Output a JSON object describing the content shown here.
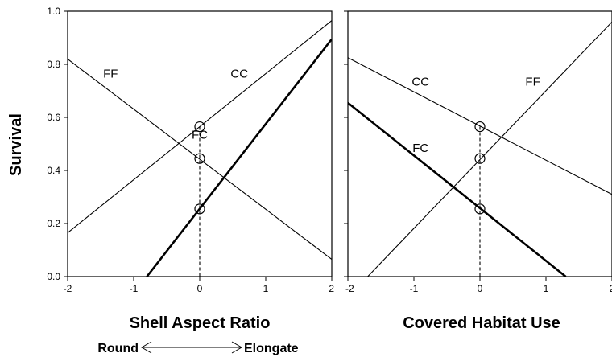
{
  "ylabel": "Survival",
  "direction": {
    "left": "Round",
    "right": "Elongate"
  },
  "chart_data": [
    {
      "type": "line",
      "xlabel": "Shell Aspect Ratio",
      "ylabel": "Survival",
      "xlim": [
        -2,
        2
      ],
      "ylim": [
        0.0,
        1.0
      ],
      "xticks": [
        "-2",
        "-1",
        "0",
        "1",
        "2"
      ],
      "yticks": [
        "0.0",
        "0.2",
        "0.4",
        "0.6",
        "0.8",
        "1.0"
      ],
      "grid": false,
      "series": [
        {
          "name": "FF",
          "points": [
            [
              -2,
              0.82
            ],
            [
              2,
              0.065
            ]
          ],
          "bold": false
        },
        {
          "name": "CC",
          "points": [
            [
              -2,
              0.165
            ],
            [
              2,
              0.965
            ]
          ],
          "bold": false
        },
        {
          "name": "FC",
          "points": [
            [
              -0.8,
              0.0
            ],
            [
              2,
              0.895
            ]
          ],
          "bold": true
        }
      ],
      "markers": [
        [
          0,
          0.565
        ],
        [
          0,
          0.445
        ],
        [
          0,
          0.255
        ]
      ]
    },
    {
      "type": "line",
      "xlabel": "Covered Habitat Use",
      "xlim": [
        -2,
        2
      ],
      "ylim": [
        0.0,
        1.0
      ],
      "xticks": [
        "-2",
        "-1",
        "0",
        "1",
        "2"
      ],
      "grid": false,
      "series": [
        {
          "name": "CC",
          "points": [
            [
              -2,
              0.825
            ],
            [
              2,
              0.31
            ]
          ],
          "bold": false
        },
        {
          "name": "FF",
          "points": [
            [
              -1.7,
              0.0
            ],
            [
              2,
              0.96
            ]
          ],
          "bold": false
        },
        {
          "name": "FC",
          "points": [
            [
              -2,
              0.655
            ],
            [
              1.3,
              0.0
            ]
          ],
          "bold": true
        }
      ],
      "markers": [
        [
          0,
          0.565
        ],
        [
          0,
          0.445
        ],
        [
          0,
          0.255
        ]
      ]
    }
  ]
}
